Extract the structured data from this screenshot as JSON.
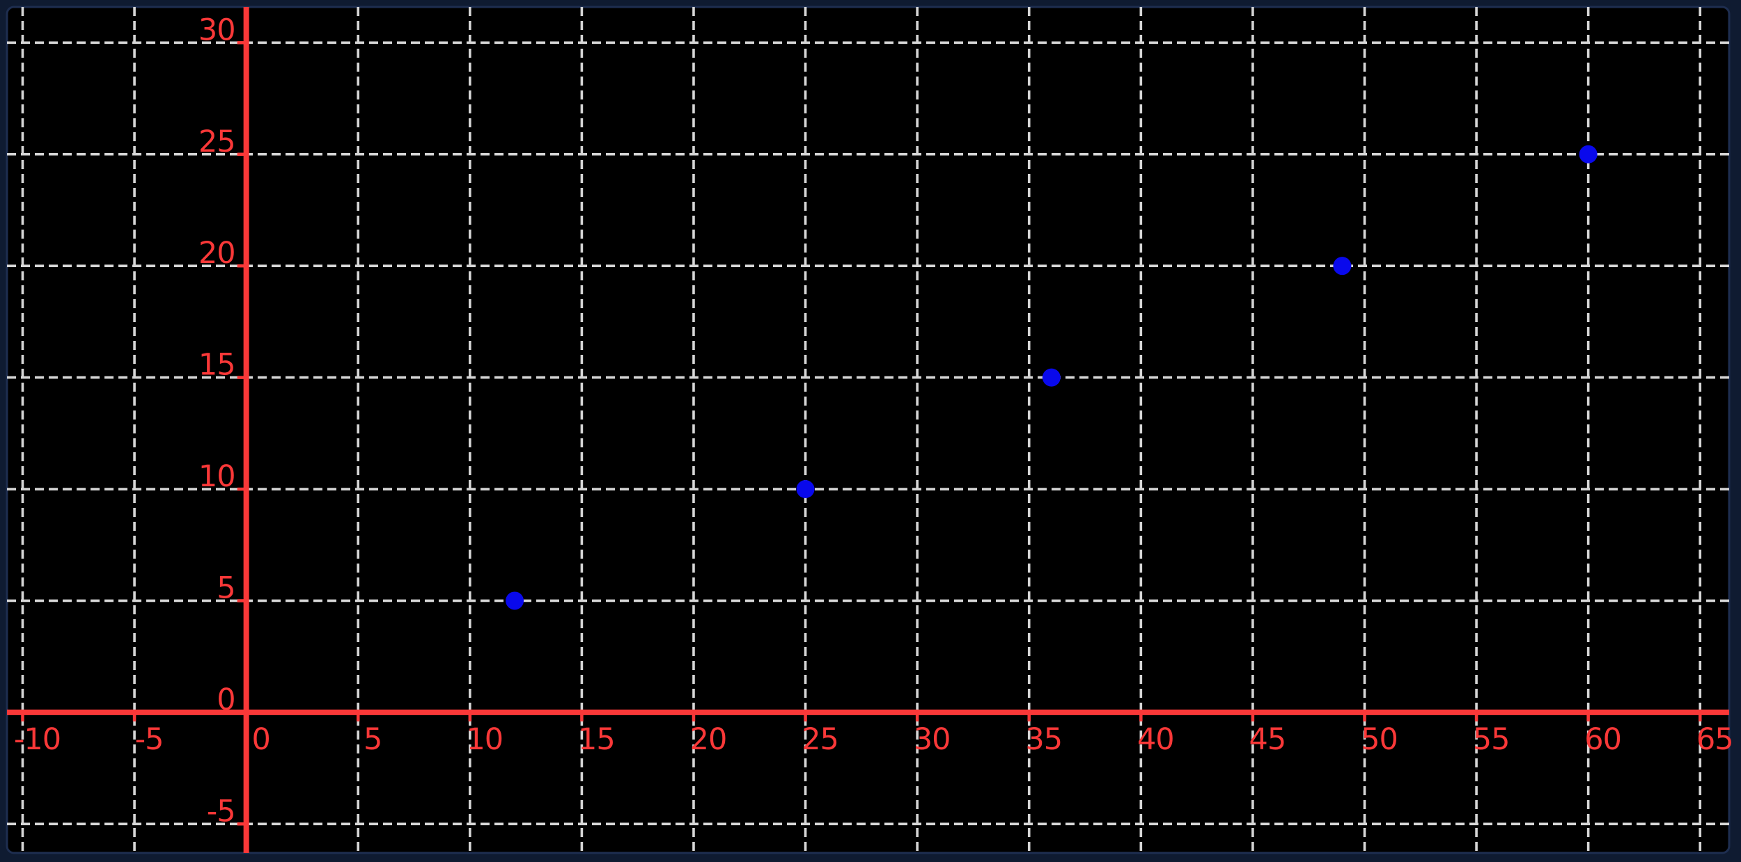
{
  "figure": {
    "name": "scatter-plot",
    "background": "#0f1b31",
    "plot_background": "#000000",
    "border_color": "#1e2e50"
  },
  "colors": {
    "axis": "#fa3838",
    "tick_label": "#fa3838",
    "grid": "#d6d6d6",
    "point": "#0909ec"
  },
  "chart_data": {
    "type": "scatter",
    "title": "",
    "xlabel": "",
    "ylabel": "",
    "points": [
      {
        "x": 12,
        "y": 5
      },
      {
        "x": 25,
        "y": 10
      },
      {
        "x": 36,
        "y": 15
      },
      {
        "x": 49,
        "y": 20
      },
      {
        "x": 60,
        "y": 25
      }
    ],
    "x_ticks": [
      -10,
      -5,
      0,
      5,
      10,
      15,
      20,
      25,
      30,
      35,
      40,
      45,
      50,
      55,
      60,
      65
    ],
    "y_ticks": [
      -5,
      0,
      5,
      10,
      15,
      20,
      25,
      30
    ],
    "xlim": [
      -10.7,
      66.3
    ],
    "ylim": [
      -6.3,
      31.6
    ],
    "grid": true,
    "grid_style": "dashed",
    "axes_through_origin": true,
    "legend": null,
    "point_radius_px": 13
  }
}
